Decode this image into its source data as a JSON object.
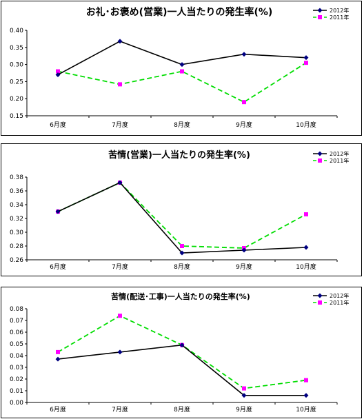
{
  "chart_data": [
    {
      "type": "line",
      "title": "お礼･お褒め(営業)一人当たりの発生率(%)",
      "categories": [
        "6月度",
        "7月度",
        "8月度",
        "9月度",
        "10月度"
      ],
      "ylim": [
        0.15,
        0.4
      ],
      "yticks": [
        "0.40",
        "0.35",
        "0.30",
        "0.25",
        "0.20",
        "0.15"
      ],
      "legend": "top-right",
      "series": [
        {
          "name": "2012年",
          "values": [
            0.27,
            0.368,
            0.3,
            0.33,
            0.32
          ],
          "color": "#000000",
          "marker_color": "#000080",
          "dash": "solid",
          "marker": "diamond"
        },
        {
          "name": "2011年",
          "values": [
            0.28,
            0.242,
            0.28,
            0.19,
            0.305
          ],
          "color": "#00dd00",
          "marker_color": "#ff00ff",
          "dash": "dashed",
          "marker": "square"
        }
      ]
    },
    {
      "type": "line",
      "title": "苦情(営業)一人当たりの発生率(%)",
      "categories": [
        "6月度",
        "7月度",
        "8月度",
        "9月度",
        "10月度"
      ],
      "ylim": [
        0.26,
        0.38
      ],
      "yticks": [
        "0.38",
        "0.36",
        "0.34",
        "0.32",
        "0.30",
        "0.28",
        "0.26"
      ],
      "legend": "top-right",
      "series": [
        {
          "name": "2012年",
          "values": [
            0.33,
            0.372,
            0.27,
            0.274,
            0.278
          ],
          "color": "#000000",
          "marker_color": "#000080",
          "dash": "solid",
          "marker": "diamond"
        },
        {
          "name": "2011年",
          "values": [
            0.33,
            0.372,
            0.28,
            0.277,
            0.326
          ],
          "color": "#00dd00",
          "marker_color": "#ff00ff",
          "dash": "dashed",
          "marker": "square"
        }
      ]
    },
    {
      "type": "line",
      "title": "苦情(配送･工事)一人当たりの発生率(%)",
      "categories": [
        "6月度",
        "7月度",
        "8月度",
        "9月度",
        "10月度"
      ],
      "ylim": [
        0.0,
        0.08
      ],
      "yticks": [
        "0.08",
        "0.07",
        "0.06",
        "0.05",
        "0.04",
        "0.03",
        "0.02",
        "0.01",
        "0.00"
      ],
      "legend": "top-right",
      "series": [
        {
          "name": "2012年",
          "values": [
            0.037,
            0.043,
            0.049,
            0.006,
            0.006
          ],
          "color": "#000000",
          "marker_color": "#000080",
          "dash": "solid",
          "marker": "diamond"
        },
        {
          "name": "2011年",
          "values": [
            0.043,
            0.074,
            0.049,
            0.012,
            0.019
          ],
          "color": "#00dd00",
          "marker_color": "#ff00ff",
          "dash": "dashed",
          "marker": "square"
        }
      ]
    }
  ]
}
